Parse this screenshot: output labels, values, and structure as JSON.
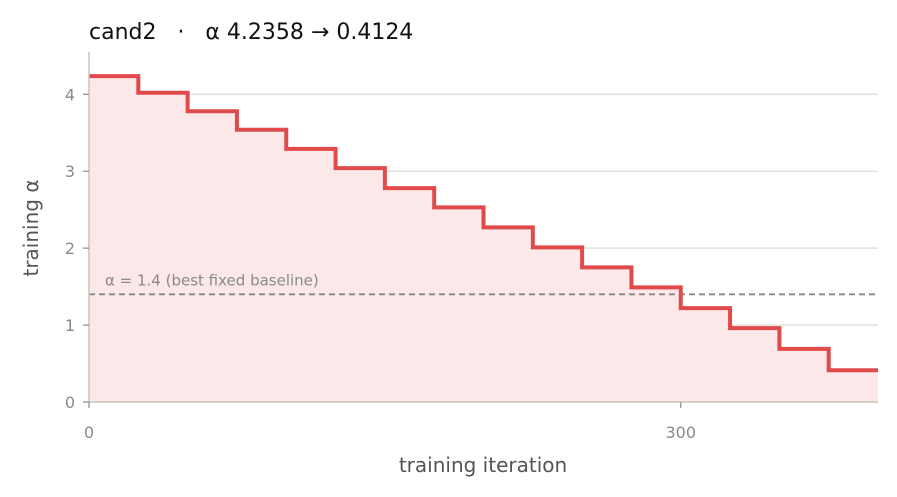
{
  "chart_data": {
    "type": "line",
    "step": true,
    "title": "cand2   ·   α 4.2358 → 0.4124",
    "xlabel": "training iteration",
    "ylabel": "training α",
    "xlim": [
      0,
      400
    ],
    "ylim": [
      0,
      4.55
    ],
    "xticks": [
      0,
      300
    ],
    "yticks": [
      0,
      1,
      2,
      3,
      4
    ],
    "grid": "horizontal",
    "series": [
      {
        "color": "#e04a4a",
        "fill": "#fce8e8",
        "x": [
          0,
          25,
          50,
          75,
          100,
          125,
          150,
          175,
          200,
          225,
          250,
          275,
          300,
          325,
          350,
          375,
          400
        ],
        "y": [
          4.2358,
          4.02,
          3.78,
          3.54,
          3.29,
          3.04,
          2.78,
          2.53,
          2.27,
          2.01,
          1.75,
          1.49,
          1.22,
          0.96,
          0.69,
          0.4124,
          0.4124
        ]
      }
    ],
    "reference_line": {
      "y": 1.4,
      "label": "α = 1.4 (best fixed baseline)",
      "color": "#888888",
      "style": "dashed"
    }
  }
}
